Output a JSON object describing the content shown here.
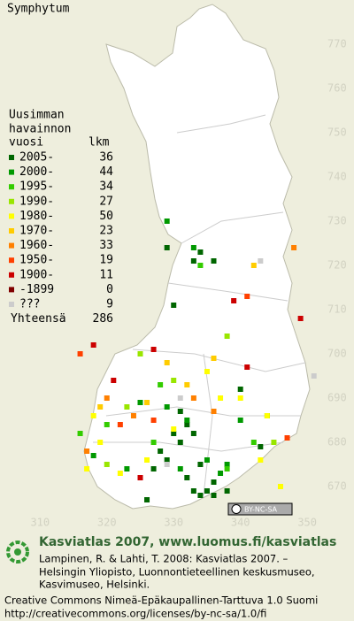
{
  "title": "Symphytum",
  "legend": {
    "heading": [
      "Uusimman",
      "havainnon"
    ],
    "col_year": "vuosi",
    "col_count": "lkm",
    "rows": [
      {
        "label": "2005-",
        "count": 36,
        "color": "#006600",
        "points": [
          [
            331,
            687
          ],
          [
            333,
            682
          ],
          [
            331,
            680
          ],
          [
            329,
            676
          ],
          [
            327,
            674
          ],
          [
            332,
            672
          ],
          [
            333,
            669
          ],
          [
            334,
            668
          ],
          [
            335,
            669
          ],
          [
            336,
            668
          ],
          [
            336,
            671
          ],
          [
            338,
            669
          ],
          [
            330,
            682
          ],
          [
            328,
            678
          ],
          [
            333,
            721
          ],
          [
            336,
            721
          ],
          [
            329,
            724
          ],
          [
            334,
            723
          ],
          [
            330,
            711
          ],
          [
            340,
            692
          ],
          [
            343,
            679
          ],
          [
            334,
            675
          ],
          [
            326,
            667
          ],
          [
            332,
            684
          ]
        ]
      },
      {
        "label": "2000-",
        "count": 44,
        "color": "#009900",
        "points": [
          [
            329,
            688
          ],
          [
            332,
            685
          ],
          [
            335,
            676
          ],
          [
            337,
            673
          ],
          [
            318,
            677
          ],
          [
            323,
            674
          ],
          [
            331,
            674
          ],
          [
            329,
            730
          ],
          [
            333,
            724
          ],
          [
            344,
            686
          ],
          [
            325,
            689
          ],
          [
            340,
            685
          ],
          [
            338,
            675
          ]
        ]
      },
      {
        "label": "1995-",
        "count": 34,
        "color": "#33cc00",
        "points": [
          [
            320,
            684
          ],
          [
            328,
            693
          ],
          [
            338,
            674
          ],
          [
            334,
            720
          ],
          [
            327,
            680
          ],
          [
            342,
            680
          ],
          [
            316,
            682
          ]
        ]
      },
      {
        "label": "1990-",
        "count": 27,
        "color": "#99e600",
        "points": [
          [
            325,
            700
          ],
          [
            320,
            675
          ],
          [
            338,
            704
          ],
          [
            323,
            688
          ],
          [
            330,
            694
          ],
          [
            345,
            680
          ]
        ]
      },
      {
        "label": "1980-",
        "count": 50,
        "color": "#ffff00",
        "points": [
          [
            318,
            686
          ],
          [
            319,
            680
          ],
          [
            322,
            673
          ],
          [
            326,
            676
          ],
          [
            330,
            683
          ],
          [
            335,
            696
          ],
          [
            340,
            690
          ],
          [
            344,
            686
          ],
          [
            317,
            674
          ],
          [
            337,
            690
          ],
          [
            343,
            676
          ],
          [
            346,
            670
          ]
        ]
      },
      {
        "label": "1970-",
        "count": 23,
        "color": "#ffcc00",
        "points": [
          [
            319,
            688
          ],
          [
            326,
            689
          ],
          [
            332,
            693
          ],
          [
            342,
            720
          ],
          [
            329,
            698
          ],
          [
            336,
            699
          ]
        ]
      },
      {
        "label": "1960-",
        "count": 33,
        "color": "#ff8000",
        "points": [
          [
            320,
            690
          ],
          [
            324,
            686
          ],
          [
            333,
            690
          ],
          [
            348,
            724
          ],
          [
            317,
            678
          ],
          [
            336,
            687
          ]
        ]
      },
      {
        "label": "1950-",
        "count": 19,
        "color": "#ff4000",
        "points": [
          [
            316,
            700
          ],
          [
            327,
            685
          ],
          [
            341,
            713
          ],
          [
            347,
            681
          ],
          [
            322,
            684
          ]
        ]
      },
      {
        "label": "1900-",
        "count": 11,
        "color": "#cc0000",
        "points": [
          [
            318,
            702
          ],
          [
            321,
            694
          ],
          [
            327,
            701
          ],
          [
            341,
            697
          ],
          [
            349,
            708
          ],
          [
            339,
            712
          ],
          [
            325,
            672
          ]
        ]
      },
      {
        "label": "-1899",
        "count": 0,
        "color": "#800000",
        "points": []
      },
      {
        "label": "???",
        "count": 9,
        "color": "#cccccc",
        "points": [
          [
            343,
            721
          ],
          [
            351,
            695
          ],
          [
            331,
            690
          ],
          [
            329,
            675
          ]
        ]
      }
    ],
    "total_label": "Yhteensä",
    "total": 286
  },
  "map": {
    "xlim": [
      304,
      357
    ],
    "ylim": [
      660,
      780
    ],
    "xticks": [
      310,
      320,
      330,
      340,
      350
    ],
    "yticks": [
      670,
      680,
      690,
      700,
      710,
      720,
      730,
      740,
      750,
      760,
      770
    ]
  },
  "license_badge": "BY-NC-SA",
  "footer": {
    "headline": "Kasviatlas 2007, www.luomus.fi/kasviatlas",
    "citation": [
      "Lampinen, R. & Lahti, T. 2008: Kasviatlas 2007. –",
      "Helsingin Yliopisto, Luonnontieteellinen keskusmuseo,",
      "Kasvimuseo, Helsinki."
    ],
    "license": "Creative Commons Nimeä-Epäkaupallinen-Tarttuva 1.0 Suomi",
    "url": "http://creativecommons.org/licenses/by-nc-sa/1.0/fi"
  }
}
